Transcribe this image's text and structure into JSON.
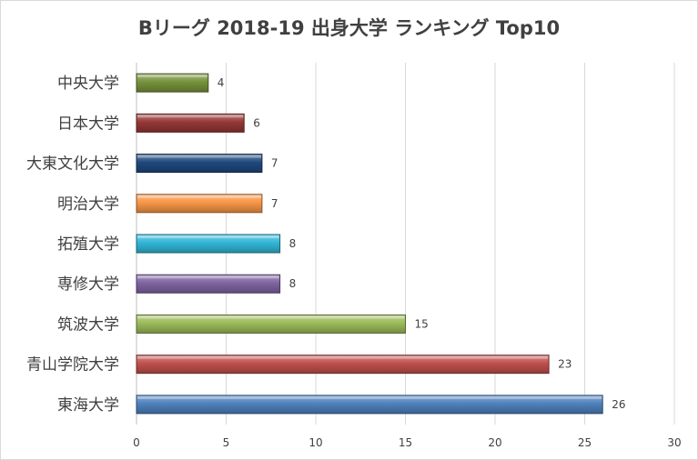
{
  "chart_data": {
    "type": "bar",
    "orientation": "horizontal",
    "title": "Bリーグ 2018-19 出身大学 ランキング Top10",
    "xlabel": "",
    "ylabel": "",
    "xlim": [
      0,
      30
    ],
    "ticks": [
      0,
      5,
      10,
      15,
      20,
      25,
      30
    ],
    "grid": true,
    "legend": "none",
    "categories": [
      "中央大学",
      "日本大学",
      "大東文化大学",
      "明治大学",
      "拓殖大学",
      "専修大学",
      "筑波大学",
      "青山学院大学",
      "東海大学"
    ],
    "values": [
      4,
      6,
      7,
      7,
      8,
      8,
      15,
      23,
      26
    ],
    "colors": [
      "#76923c",
      "#953735",
      "#1f497d",
      "#f79646",
      "#31b6d6",
      "#8064a2",
      "#9bbb59",
      "#c0504d",
      "#4f81bd"
    ]
  }
}
